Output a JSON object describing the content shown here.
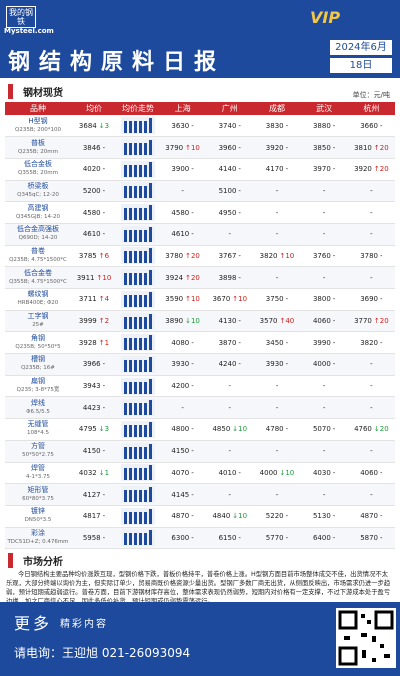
{
  "header": {
    "logo": "我的钢铁",
    "site": "Mysteel.com",
    "badge": "VIP",
    "title": "钢结构原料日报",
    "month": "2024年6月",
    "day": "18日"
  },
  "section": "钢材现货",
  "unit": "单位：元/吨",
  "table": {
    "columns": [
      "品种",
      "均价",
      "均价走势",
      "上海",
      "广州",
      "成都",
      "武汉",
      "杭州"
    ],
    "rows": [
      [
        "H型钢",
        "Q235B; 200*100",
        "3684",
        "↓3",
        [
          "3630",
          "-"
        ],
        [
          "3740",
          "-"
        ],
        [
          "3830",
          "-"
        ],
        [
          "3880",
          "-"
        ],
        [
          "3660",
          "-"
        ]
      ],
      [
        "普板",
        "Q235B; 20mm",
        "3846",
        "-",
        [
          "3790",
          "↑10"
        ],
        [
          "3960",
          "-"
        ],
        [
          "3920",
          "-"
        ],
        [
          "3850",
          "-"
        ],
        [
          "3810",
          "↑20"
        ]
      ],
      [
        "低合金板",
        "Q355B; 20mm",
        "4020",
        "-",
        [
          "3900",
          "-"
        ],
        [
          "4140",
          "-"
        ],
        [
          "4170",
          "-"
        ],
        [
          "3970",
          "-"
        ],
        [
          "3920",
          "↑20"
        ]
      ],
      [
        "桥梁板",
        "Q345qC; 12-20",
        "5200",
        "-",
        [
          "-",
          ""
        ],
        [
          "5100",
          "-"
        ],
        [
          "-",
          ""
        ],
        [
          "-",
          ""
        ],
        [
          "-",
          ""
        ]
      ],
      [
        "高建钢",
        "Q345GJB; 14-20",
        "4580",
        "-",
        [
          "4580",
          "-"
        ],
        [
          "4950",
          "-"
        ],
        [
          "-",
          ""
        ],
        [
          "-",
          ""
        ],
        [
          "-",
          ""
        ]
      ],
      [
        "低合金高强板",
        "Q690D; 14-20",
        "4610",
        "-",
        [
          "4610",
          "-"
        ],
        [
          "-",
          ""
        ],
        [
          "-",
          ""
        ],
        [
          "-",
          ""
        ],
        [
          "-",
          ""
        ]
      ],
      [
        "普卷",
        "Q235B; 4.75*1500*C",
        "3785",
        "↑6",
        [
          "3780",
          "↑20"
        ],
        [
          "3767",
          "-"
        ],
        [
          "3820",
          "↑10"
        ],
        [
          "3760",
          "-"
        ],
        [
          "3780",
          "-"
        ]
      ],
      [
        "低合金卷",
        "Q355B; 4.75*1500*C",
        "3911",
        "↑10",
        [
          "3924",
          "↑20"
        ],
        [
          "3898",
          "-"
        ],
        [
          "-",
          ""
        ],
        [
          "-",
          ""
        ],
        [
          "-",
          ""
        ]
      ],
      [
        "螺纹钢",
        "HRB400E; Φ20",
        "3711",
        "↑4",
        [
          "3590",
          "↑10"
        ],
        [
          "3670",
          "↑10"
        ],
        [
          "3750",
          "-"
        ],
        [
          "3800",
          "-"
        ],
        [
          "3690",
          "-"
        ]
      ],
      [
        "工字钢",
        "25#",
        "3999",
        "↑2",
        [
          "3890",
          "↓10"
        ],
        [
          "4130",
          "-"
        ],
        [
          "3570",
          "↑40"
        ],
        [
          "4060",
          "-"
        ],
        [
          "3770",
          "↑20"
        ]
      ],
      [
        "角钢",
        "Q235B; 50*50*5",
        "3928",
        "↑1",
        [
          "4080",
          "-"
        ],
        [
          "3870",
          "-"
        ],
        [
          "3450",
          "-"
        ],
        [
          "3990",
          "-"
        ],
        [
          "3820",
          "-"
        ]
      ],
      [
        "槽钢",
        "Q235B; 16#",
        "3966",
        "-",
        [
          "3930",
          "-"
        ],
        [
          "4240",
          "-"
        ],
        [
          "3930",
          "-"
        ],
        [
          "4000",
          "-"
        ],
        [
          "-",
          ""
        ]
      ],
      [
        "扁钢",
        "Q235; 3-8*75宽",
        "3943",
        "-",
        [
          "4200",
          "-"
        ],
        [
          "-",
          ""
        ],
        [
          "-",
          ""
        ],
        [
          "-",
          ""
        ],
        [
          "-",
          ""
        ]
      ],
      [
        "焊线",
        "Φ6.5/5.5",
        "4423",
        "-",
        [
          "-",
          ""
        ],
        [
          "-",
          ""
        ],
        [
          "-",
          ""
        ],
        [
          "-",
          ""
        ],
        [
          "-",
          ""
        ]
      ],
      [
        "无缝管",
        "108*4.5",
        "4795",
        "↓3",
        [
          "4800",
          "-"
        ],
        [
          "4850",
          "↓10"
        ],
        [
          "4780",
          "-"
        ],
        [
          "5070",
          "-"
        ],
        [
          "4760",
          "↓20"
        ]
      ],
      [
        "方管",
        "50*50*2.75",
        "4150",
        "-",
        [
          "4150",
          "-"
        ],
        [
          "-",
          ""
        ],
        [
          "-",
          ""
        ],
        [
          "-",
          ""
        ],
        [
          "-",
          ""
        ]
      ],
      [
        "焊管",
        "4-1*3.75",
        "4032",
        "↓1",
        [
          "4070",
          "-"
        ],
        [
          "4010",
          "-"
        ],
        [
          "4000",
          "↓10"
        ],
        [
          "4030",
          "-"
        ],
        [
          "4060",
          "-"
        ]
      ],
      [
        "矩形管",
        "60*80*3.75",
        "4127",
        "-",
        [
          "4145",
          "-"
        ],
        [
          "-",
          ""
        ],
        [
          "-",
          ""
        ],
        [
          "-",
          ""
        ],
        [
          "-",
          ""
        ]
      ],
      [
        "镀锌",
        "DN50*3.5",
        "4817",
        "-",
        [
          "4870",
          "-"
        ],
        [
          "4840",
          "↓10"
        ],
        [
          "5220",
          "-"
        ],
        [
          "5130",
          "-"
        ],
        [
          "4870",
          "-"
        ]
      ],
      [
        "彩涂",
        "TDC51D+Z; 0.476mm",
        "5958",
        "-",
        [
          "6300",
          "-"
        ],
        [
          "6150",
          "-"
        ],
        [
          "5770",
          "-"
        ],
        [
          "6400",
          "-"
        ],
        [
          "5870",
          "-"
        ]
      ]
    ]
  },
  "analysis_title": "市场分析",
  "analysis": "今日钢结构主要品种均价涨跌互现，型钢价格下跌，普板价格持平，普卷价格上涨。H型钢方面目前市场整体成交不佳，出货情况不太乐观，大部分终端以询价为主，但实际订单少，贸易商既价格资源少量出货。型钢厂多数厂商无出货，从侧面反映出，市场需求仍进一步趋弱，预计短期或趋弱运行。普卷方面，目前下游钢材库存高位，整体需求表现仍然弱势，短期内对价格有一定支撑，不过下游成本处于盈亏边缘，加之厂商信心不足，因此多低价补货，预计短期或仍弱势震荡运行。",
  "footer": {
    "more": "更多",
    "more_sub": "精彩内容",
    "contact": "请电询：王迎旭 021-26093094"
  }
}
